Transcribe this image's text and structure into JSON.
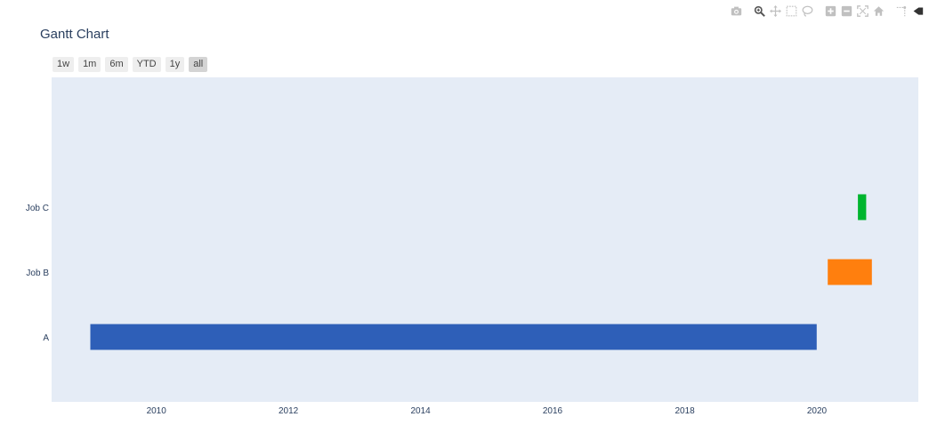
{
  "modebar": {
    "groups": [
      [
        "camera-icon"
      ],
      [
        "zoom-icon",
        "pan-icon",
        "box-select-icon",
        "lasso-select-icon"
      ],
      [
        "zoom-in-icon",
        "zoom-out-icon",
        "autoscale-icon",
        "reset-axes-icon"
      ],
      [
        "spikelines-icon",
        "hover-closest-icon"
      ]
    ]
  },
  "range_selector": {
    "buttons": [
      "1w",
      "1m",
      "6m",
      "YTD",
      "1y",
      "all"
    ],
    "active": "all"
  },
  "chart_data": {
    "type": "gantt",
    "title": "Gantt Chart",
    "xlabel": "",
    "ylabel": "",
    "x_axis": {
      "type": "date",
      "range": [
        "2008-06-01",
        "2021-07-15"
      ],
      "tick_values": [
        "2010-01-01",
        "2012-01-01",
        "2014-01-01",
        "2016-01-01",
        "2018-01-01",
        "2020-01-01"
      ],
      "tick_labels": [
        "2010",
        "2012",
        "2014",
        "2016",
        "2018",
        "2020"
      ]
    },
    "categories": [
      "A",
      "Job B",
      "Job C"
    ],
    "tasks": [
      {
        "task": "A",
        "start": "2009-01-01",
        "finish": "2019-12-31",
        "color": "#2e5fb8"
      },
      {
        "task": "Job B",
        "start": "2020-03-01",
        "finish": "2020-10-31",
        "color": "#ff7f0e"
      },
      {
        "task": "Job C",
        "start": "2020-08-15",
        "finish": "2020-09-30",
        "color": "#00b52e"
      }
    ],
    "plot_background": "#e5ecf6",
    "grid": false,
    "legend": "none"
  }
}
